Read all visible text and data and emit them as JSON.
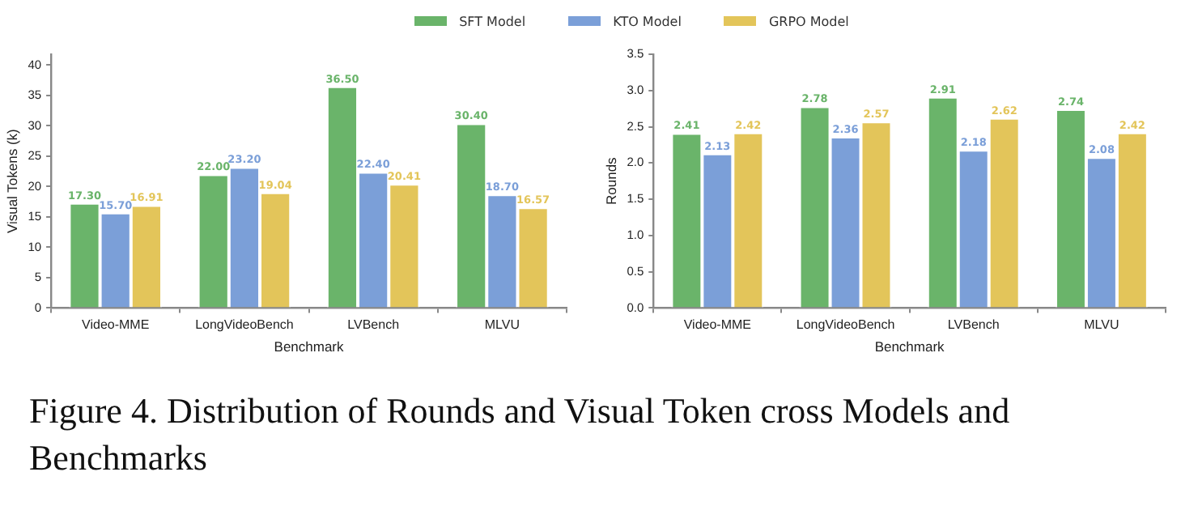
{
  "chart_data": [
    {
      "type": "bar",
      "xlabel": "Benchmark",
      "ylabel": "Visual Tokens (k)",
      "categories": [
        "Video-MME",
        "LongVideoBench",
        "LVBench",
        "MLVU"
      ],
      "legend": "top",
      "grid": false,
      "ylim": [
        0,
        41.8
      ],
      "yticks": [
        0,
        5,
        10,
        15,
        20,
        25,
        30,
        35,
        40
      ],
      "series": [
        {
          "name": "SFT Model",
          "color": "#6ab46a",
          "values": [
            17.3,
            22.0,
            36.5,
            30.4
          ],
          "value_labels": [
            "17.30",
            "22.00",
            "36.50",
            "30.40"
          ]
        },
        {
          "name": "KTO Model",
          "color": "#7b9fd8",
          "values": [
            15.7,
            23.2,
            22.4,
            18.7
          ],
          "value_labels": [
            "15.70",
            "23.20",
            "22.40",
            "18.70"
          ]
        },
        {
          "name": "GRPO Model",
          "color": "#e3c55a",
          "values": [
            16.91,
            19.04,
            20.41,
            16.57
          ],
          "value_labels": [
            "16.91",
            "19.04",
            "20.41",
            "16.57"
          ]
        }
      ],
      "annotations": [
        "Figure 4. Distribution of Rounds and Visual Token cross Models and Benchmarks"
      ]
    },
    {
      "type": "bar",
      "xlabel": "Benchmark",
      "ylabel": "Rounds",
      "categories": [
        "Video-MME",
        "LongVideoBench",
        "LVBench",
        "MLVU"
      ],
      "grid": false,
      "ylim": [
        0,
        3.5
      ],
      "yticks": [
        {
          "value": 0,
          "label": "0.0"
        },
        {
          "value": 0.5,
          "label": "0.5"
        },
        {
          "value": 1,
          "label": "1.0"
        },
        {
          "value": 1.5,
          "label": "1.5"
        },
        {
          "value": 2,
          "label": "2.0"
        },
        {
          "value": 2.5,
          "label": "2.5"
        },
        {
          "value": 3,
          "label": "3.0"
        },
        {
          "value": 3.5,
          "label": "3.5"
        }
      ],
      "series": [
        {
          "color": "#6ab46a",
          "values": [
            2.41,
            2.78,
            2.91,
            2.74
          ],
          "value_labels": [
            "2.41",
            "2.78",
            "2.91",
            "2.74"
          ]
        },
        {
          "color": "#7b9fd8",
          "values": [
            2.13,
            2.36,
            2.18,
            2.08
          ],
          "value_labels": [
            "2.13",
            "2.36",
            "2.18",
            "2.08"
          ]
        },
        {
          "color": "#e3c55a",
          "values": [
            2.42,
            2.57,
            2.62,
            2.42
          ],
          "value_labels": [
            "2.42",
            "2.57",
            "2.62",
            "2.42"
          ]
        }
      ]
    }
  ]
}
